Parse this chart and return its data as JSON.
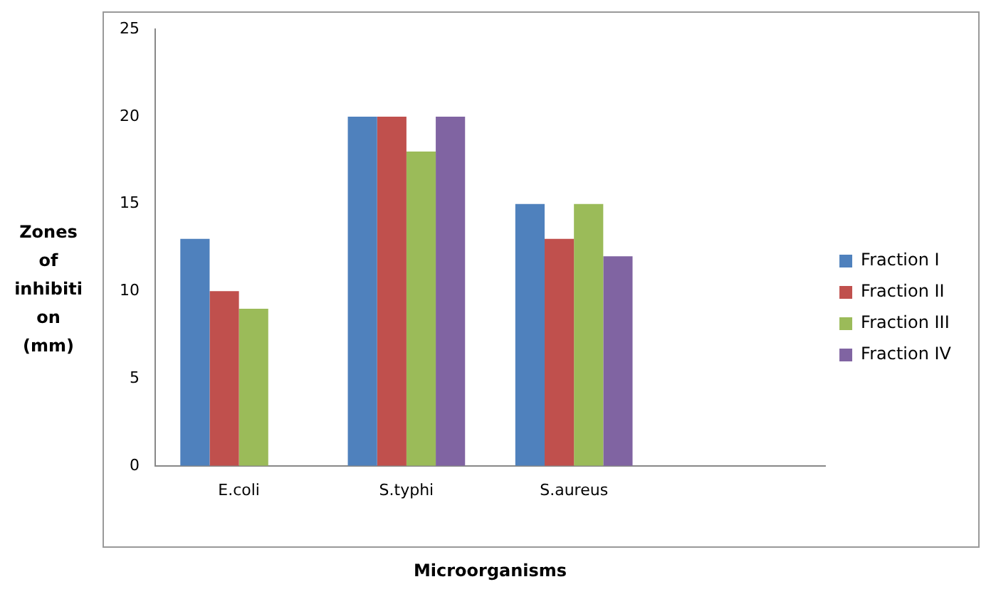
{
  "chart_data": {
    "type": "bar",
    "xlabel": "Microorganisms",
    "ylabel": "Zones of inhibition (mm)",
    "categories": [
      "E.coli",
      "S.typhi",
      "S.aureus",
      null
    ],
    "series": [
      {
        "name": "Fraction I",
        "color": "#4f81bd",
        "values": [
          13,
          20,
          15,
          null
        ]
      },
      {
        "name": "Fraction II",
        "color": "#c0504d",
        "values": [
          10,
          20,
          13,
          null
        ]
      },
      {
        "name": "Fraction III",
        "color": "#9bbb59",
        "values": [
          9,
          18,
          15,
          null
        ]
      },
      {
        "name": "Fraction IV",
        "color": "#8064a2",
        "values": [
          null,
          20,
          12,
          null
        ]
      }
    ],
    "ylim": [
      0,
      25
    ],
    "yticks": [
      0,
      5,
      10,
      15,
      20,
      25
    ],
    "legend": "right"
  }
}
